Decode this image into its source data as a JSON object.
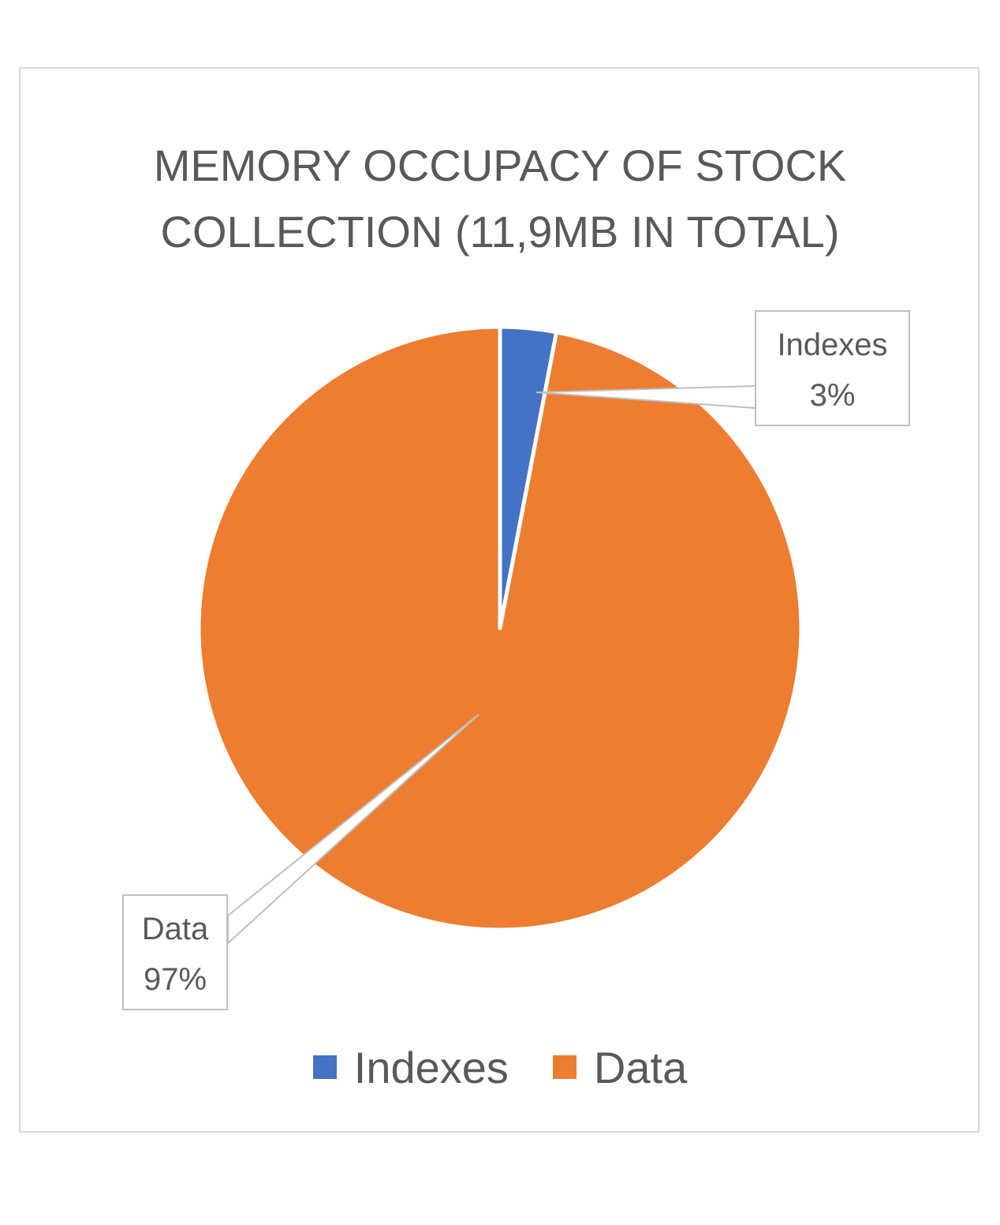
{
  "chart_data": {
    "type": "pie",
    "title_lines": [
      "MEMORY OCCUPACY OF STOCK",
      "COLLECTION (11,9MB IN TOTAL)"
    ],
    "categories": [
      "Indexes",
      "Data"
    ],
    "values": [
      3,
      97
    ],
    "data_labels": [
      {
        "category": "Indexes",
        "percent": "3%"
      },
      {
        "category": "Data",
        "percent": "97%"
      }
    ],
    "colors": [
      "#4472c4",
      "#ed7d31"
    ],
    "legend_position": "bottom"
  }
}
